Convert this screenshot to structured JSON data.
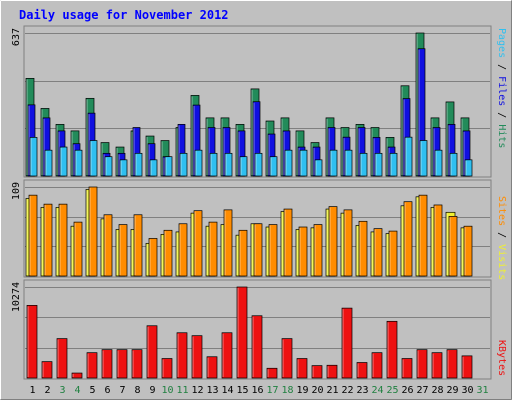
{
  "title": "Daily usage for November 2012",
  "colors": {
    "background": "#ffffff",
    "frame": "#c0c0c0",
    "panel": "#c0c0c0",
    "title": "#0000ff",
    "hits": "#228b5a",
    "files": "#1010e0",
    "pages": "#30c0f0",
    "visits": "#f0f030",
    "sites": "#ff8c00",
    "kbytes": "#ee1111",
    "weekday_label": "#000000",
    "weekend_label": "#208040"
  },
  "legends": {
    "hits_files_pages": [
      {
        "text": "Pages",
        "color": "#30c0f0"
      },
      {
        "text": " / ",
        "color": "#000000"
      },
      {
        "text": "Files",
        "color": "#1010e0"
      },
      {
        "text": " / ",
        "color": "#000000"
      },
      {
        "text": "Hits",
        "color": "#228b5a"
      }
    ],
    "sites_visits": [
      {
        "text": "Sites",
        "color": "#ff8c00"
      },
      {
        "text": " / ",
        "color": "#000000"
      },
      {
        "text": "Visits",
        "color": "#f0f030"
      }
    ],
    "kbytes": [
      {
        "text": "KBytes",
        "color": "#ee1111"
      }
    ]
  },
  "chart_data": [
    {
      "type": "bar",
      "title": "Daily usage for November 2012",
      "categories": [
        "1",
        "2",
        "3",
        "4",
        "5",
        "6",
        "7",
        "8",
        "9",
        "10",
        "11",
        "12",
        "13",
        "14",
        "15",
        "16",
        "17",
        "18",
        "19",
        "20",
        "21",
        "22",
        "23",
        "24",
        "25",
        "26",
        "27",
        "28",
        "29",
        "30",
        "31"
      ],
      "weekend_days": [
        "3",
        "4",
        "10",
        "11",
        "17",
        "18",
        "24",
        "25",
        "31"
      ],
      "ymax_label": "637",
      "ylim": [
        0,
        637
      ],
      "series": [
        {
          "name": "Hits",
          "values": [
            435,
            301,
            230,
            201,
            346,
            149,
            129,
            201,
            178,
            158,
            216,
            359,
            259,
            259,
            230,
            388,
            245,
            259,
            201,
            149,
            259,
            216,
            230,
            216,
            172,
            402,
            637,
            259,
            330,
            259,
            0
          ]
        },
        {
          "name": "Files",
          "values": [
            317,
            259,
            201,
            144,
            280,
            101,
            101,
            216,
            144,
            86,
            230,
            316,
            216,
            216,
            201,
            331,
            187,
            201,
            129,
            129,
            216,
            173,
            216,
            172,
            129,
            345,
            567,
            216,
            230,
            201,
            0
          ]
        },
        {
          "name": "Pages",
          "values": [
            172,
            115,
            129,
            115,
            158,
            86,
            72,
            101,
            72,
            86,
            101,
            115,
            101,
            101,
            86,
            101,
            86,
            115,
            115,
            72,
            115,
            115,
            101,
            101,
            101,
            173,
            158,
            115,
            101,
            72,
            0
          ]
        }
      ]
    },
    {
      "type": "bar",
      "ymax_label": "109",
      "ylim": [
        0,
        109
      ],
      "series": [
        {
          "name": "Visits",
          "values": [
            95,
            84,
            84,
            61,
            106,
            70,
            57,
            57,
            40,
            51,
            54,
            77,
            61,
            63,
            50,
            64,
            60,
            79,
            57,
            59,
            82,
            77,
            62,
            54,
            52,
            86,
            97,
            84,
            78,
            59,
            0
          ]
        },
        {
          "name": "Sites",
          "values": [
            99,
            88,
            88,
            66,
            109,
            75,
            63,
            75,
            46,
            56,
            64,
            80,
            66,
            81,
            56,
            64,
            63,
            82,
            60,
            63,
            85,
            81,
            67,
            58,
            55,
            91,
            99,
            87,
            73,
            61,
            0
          ]
        }
      ]
    },
    {
      "type": "bar",
      "ymax_label": "10274",
      "ylim": [
        0,
        10274
      ],
      "series": [
        {
          "name": "KBytes",
          "values": [
            8200,
            1850,
            4450,
            560,
            2860,
            3200,
            3200,
            3200,
            5900,
            2200,
            5110,
            4780,
            2400,
            5110,
            10274,
            7030,
            1100,
            4450,
            2200,
            1400,
            1440,
            7890,
            1750,
            2860,
            6400,
            2200,
            3200,
            2860,
            3200,
            2500,
            0
          ]
        }
      ]
    }
  ]
}
